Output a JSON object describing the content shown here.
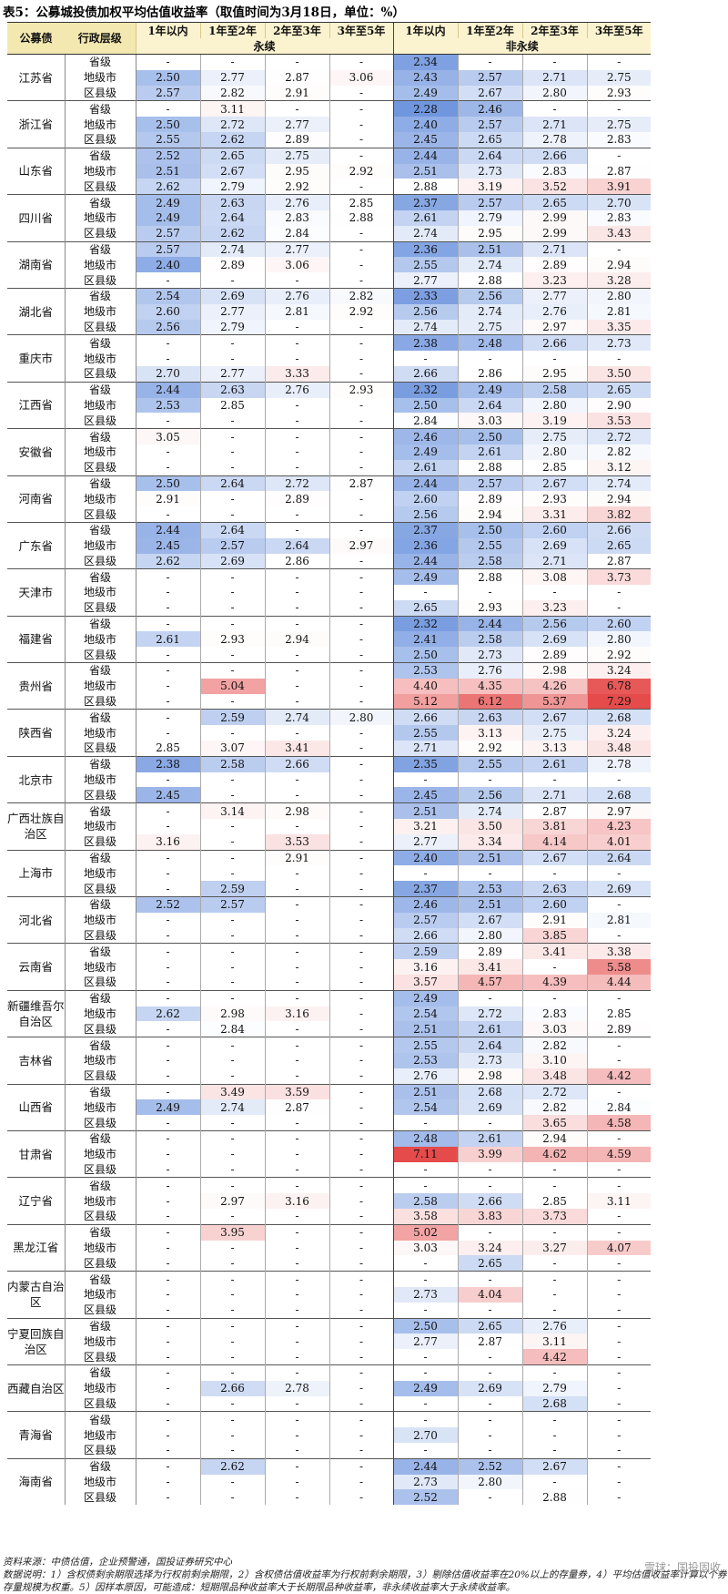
{
  "title": "表5：公募城投债加权平均估值收益率（取值时间为3月18日，单位：%）",
  "header": {
    "issuer": "公募债",
    "level": "行政层级",
    "terms": [
      "1年以内",
      "1年至2年",
      "2年至3年",
      "3年至5年"
    ],
    "perpetual": "永续",
    "non_perpetual": "非永续"
  },
  "levels": [
    "省级",
    "地级市",
    "区县级"
  ],
  "rows": [
    {
      "prov": "江苏省",
      "data": [
        [
          "-",
          "-",
          "-",
          "-",
          "2.34",
          "-",
          "-",
          "-"
        ],
        [
          "2.50",
          "2.77",
          "2.87",
          "3.06",
          "2.43",
          "2.57",
          "2.71",
          "2.75"
        ],
        [
          "2.57",
          "2.82",
          "2.91",
          "-",
          "2.49",
          "2.67",
          "2.80",
          "2.93"
        ]
      ]
    },
    {
      "prov": "浙江省",
      "data": [
        [
          "-",
          "3.11",
          "-",
          "-",
          "2.28",
          "2.46",
          "-",
          "-"
        ],
        [
          "2.50",
          "2.72",
          "2.77",
          "-",
          "2.40",
          "2.57",
          "2.71",
          "2.75"
        ],
        [
          "2.55",
          "2.62",
          "2.89",
          "-",
          "2.45",
          "2.65",
          "2.78",
          "2.83"
        ]
      ]
    },
    {
      "prov": "山东省",
      "data": [
        [
          "2.52",
          "2.65",
          "2.75",
          "-",
          "2.44",
          "2.64",
          "2.66",
          "-"
        ],
        [
          "2.51",
          "2.67",
          "2.95",
          "2.92",
          "2.51",
          "2.73",
          "2.83",
          "2.87"
        ],
        [
          "2.62",
          "2.79",
          "2.92",
          "-",
          "2.88",
          "3.19",
          "3.52",
          "3.91"
        ]
      ]
    },
    {
      "prov": "四川省",
      "data": [
        [
          "2.49",
          "2.63",
          "2.76",
          "2.85",
          "2.37",
          "2.57",
          "2.65",
          "2.70"
        ],
        [
          "2.49",
          "2.64",
          "2.83",
          "2.88",
          "2.61",
          "2.79",
          "2.99",
          "2.83"
        ],
        [
          "2.57",
          "2.62",
          "2.84",
          "-",
          "2.74",
          "2.95",
          "2.99",
          "3.43"
        ]
      ]
    },
    {
      "prov": "湖南省",
      "data": [
        [
          "2.57",
          "2.74",
          "2.77",
          "-",
          "2.36",
          "2.51",
          "2.71",
          "-"
        ],
        [
          "2.40",
          "2.89",
          "3.06",
          "-",
          "2.55",
          "2.74",
          "2.89",
          "2.94"
        ],
        [
          "-",
          "-",
          "-",
          "-",
          "2.77",
          "2.88",
          "3.23",
          "3.28"
        ]
      ]
    },
    {
      "prov": "湖北省",
      "data": [
        [
          "2.54",
          "2.69",
          "2.76",
          "2.82",
          "2.33",
          "2.56",
          "2.77",
          "2.80"
        ],
        [
          "2.60",
          "2.77",
          "2.81",
          "2.92",
          "2.56",
          "2.74",
          "2.76",
          "2.81"
        ],
        [
          "2.56",
          "2.79",
          "-",
          "-",
          "2.74",
          "2.75",
          "2.97",
          "3.35"
        ]
      ]
    },
    {
      "prov": "重庆市",
      "data": [
        [
          "-",
          "-",
          "-",
          "-",
          "2.38",
          "2.48",
          "2.66",
          "2.73"
        ],
        [
          "-",
          "-",
          "-",
          "-",
          "-",
          "-",
          "-",
          "-"
        ],
        [
          "2.70",
          "2.77",
          "3.33",
          "-",
          "2.66",
          "2.86",
          "2.95",
          "3.50"
        ]
      ]
    },
    {
      "prov": "江西省",
      "data": [
        [
          "2.44",
          "2.63",
          "2.76",
          "2.93",
          "2.32",
          "2.49",
          "2.58",
          "2.65"
        ],
        [
          "2.53",
          "2.85",
          "-",
          "-",
          "2.50",
          "2.64",
          "2.80",
          "2.90"
        ],
        [
          "-",
          "-",
          "-",
          "-",
          "2.84",
          "3.03",
          "3.19",
          "3.53"
        ]
      ]
    },
    {
      "prov": "安徽省",
      "data": [
        [
          "3.05",
          "-",
          "-",
          "-",
          "2.46",
          "2.50",
          "2.75",
          "2.72"
        ],
        [
          "-",
          "-",
          "-",
          "-",
          "2.49",
          "2.61",
          "2.80",
          "2.82"
        ],
        [
          "-",
          "-",
          "-",
          "-",
          "2.61",
          "2.88",
          "2.85",
          "3.12"
        ]
      ]
    },
    {
      "prov": "河南省",
      "data": [
        [
          "2.50",
          "2.64",
          "2.72",
          "2.87",
          "2.44",
          "2.57",
          "2.67",
          "2.74"
        ],
        [
          "2.91",
          "-",
          "2.89",
          "-",
          "2.60",
          "2.89",
          "2.93",
          "2.94"
        ],
        [
          "-",
          "-",
          "-",
          "-",
          "2.56",
          "2.94",
          "3.31",
          "3.82"
        ]
      ]
    },
    {
      "prov": "广东省",
      "data": [
        [
          "2.44",
          "2.64",
          "-",
          "-",
          "2.37",
          "2.50",
          "2.60",
          "2.66"
        ],
        [
          "2.45",
          "2.57",
          "2.64",
          "2.97",
          "2.36",
          "2.55",
          "2.69",
          "2.65"
        ],
        [
          "2.62",
          "2.69",
          "2.86",
          "-",
          "2.44",
          "2.58",
          "2.71",
          "2.87"
        ]
      ]
    },
    {
      "prov": "天津市",
      "data": [
        [
          "-",
          "-",
          "-",
          "-",
          "2.49",
          "2.88",
          "3.08",
          "3.73"
        ],
        [
          "-",
          "-",
          "-",
          "-",
          "-",
          "-",
          "-",
          "-"
        ],
        [
          "-",
          "-",
          "-",
          "-",
          "2.65",
          "2.93",
          "3.23",
          "-"
        ]
      ]
    },
    {
      "prov": "福建省",
      "data": [
        [
          "-",
          "-",
          "-",
          "-",
          "2.32",
          "2.44",
          "2.56",
          "2.60"
        ],
        [
          "2.61",
          "2.93",
          "2.94",
          "-",
          "2.41",
          "2.58",
          "2.69",
          "2.80"
        ],
        [
          "-",
          "-",
          "-",
          "-",
          "2.50",
          "2.73",
          "2.89",
          "2.92"
        ]
      ]
    },
    {
      "prov": "贵州省",
      "data": [
        [
          "-",
          "-",
          "-",
          "-",
          "2.53",
          "2.76",
          "2.98",
          "3.24"
        ],
        [
          "-",
          "5.04",
          "-",
          "-",
          "4.40",
          "4.35",
          "4.26",
          "6.78"
        ],
        [
          "-",
          "-",
          "-",
          "-",
          "5.12",
          "6.12",
          "5.37",
          "7.29"
        ]
      ]
    },
    {
      "prov": "陕西省",
      "data": [
        [
          "-",
          "2.59",
          "2.74",
          "2.80",
          "2.66",
          "2.63",
          "2.67",
          "2.68"
        ],
        [
          "-",
          "-",
          "-",
          "-",
          "2.55",
          "3.13",
          "2.75",
          "3.24"
        ],
        [
          "2.85",
          "3.07",
          "3.41",
          "-",
          "2.71",
          "2.92",
          "3.13",
          "3.48"
        ]
      ]
    },
    {
      "prov": "北京市",
      "data": [
        [
          "2.38",
          "2.58",
          "2.66",
          "-",
          "2.35",
          "2.55",
          "2.61",
          "2.78"
        ],
        [
          "-",
          "-",
          "-",
          "-",
          "-",
          "-",
          "-",
          "-"
        ],
        [
          "2.45",
          "-",
          "-",
          "-",
          "2.45",
          "2.56",
          "2.71",
          "2.68"
        ]
      ]
    },
    {
      "prov": "广西壮族自治区",
      "data": [
        [
          "-",
          "3.14",
          "2.98",
          "-",
          "2.51",
          "2.74",
          "2.87",
          "2.97"
        ],
        [
          "-",
          "-",
          "-",
          "-",
          "3.21",
          "3.50",
          "3.81",
          "4.23"
        ],
        [
          "3.16",
          "-",
          "3.53",
          "-",
          "2.77",
          "3.34",
          "4.14",
          "4.01"
        ]
      ]
    },
    {
      "prov": "上海市",
      "data": [
        [
          "-",
          "-",
          "2.91",
          "-",
          "2.40",
          "2.51",
          "2.67",
          "2.64"
        ],
        [
          "-",
          "-",
          "-",
          "-",
          "-",
          "-",
          "-",
          "-"
        ],
        [
          "-",
          "2.59",
          "-",
          "-",
          "2.37",
          "2.53",
          "2.63",
          "2.69"
        ]
      ]
    },
    {
      "prov": "河北省",
      "data": [
        [
          "2.52",
          "2.57",
          "-",
          "-",
          "2.46",
          "2.51",
          "2.60",
          "-"
        ],
        [
          "-",
          "-",
          "-",
          "-",
          "2.57",
          "2.67",
          "2.91",
          "2.81"
        ],
        [
          "-",
          "-",
          "-",
          "-",
          "2.66",
          "2.80",
          "3.85",
          "-"
        ]
      ]
    },
    {
      "prov": "云南省",
      "data": [
        [
          "-",
          "-",
          "-",
          "-",
          "2.59",
          "2.89",
          "3.41",
          "3.38"
        ],
        [
          "-",
          "-",
          "-",
          "-",
          "3.16",
          "3.41",
          "-",
          "5.58"
        ],
        [
          "-",
          "-",
          "-",
          "-",
          "3.57",
          "4.57",
          "4.39",
          "4.44"
        ]
      ]
    },
    {
      "prov": "新疆维吾尔自治区",
      "data": [
        [
          "-",
          "-",
          "-",
          "-",
          "2.49",
          "-",
          "-",
          "-"
        ],
        [
          "2.62",
          "2.98",
          "3.16",
          "-",
          "2.54",
          "2.72",
          "2.83",
          "2.85"
        ],
        [
          "-",
          "2.84",
          "-",
          "-",
          "2.51",
          "2.61",
          "3.03",
          "2.89"
        ]
      ]
    },
    {
      "prov": "吉林省",
      "data": [
        [
          "-",
          "-",
          "-",
          "-",
          "2.55",
          "2.64",
          "2.82",
          "-"
        ],
        [
          "-",
          "-",
          "-",
          "-",
          "2.53",
          "2.73",
          "3.10",
          "-"
        ],
        [
          "-",
          "-",
          "-",
          "-",
          "2.76",
          "2.98",
          "3.48",
          "4.42"
        ]
      ]
    },
    {
      "prov": "山西省",
      "data": [
        [
          "-",
          "3.49",
          "3.59",
          "-",
          "2.51",
          "2.68",
          "2.72",
          "-"
        ],
        [
          "2.49",
          "2.74",
          "2.87",
          "-",
          "2.54",
          "2.69",
          "2.82",
          "2.84"
        ],
        [
          "-",
          "-",
          "-",
          "-",
          "-",
          "-",
          "3.65",
          "4.58"
        ]
      ]
    },
    {
      "prov": "甘肃省",
      "data": [
        [
          "-",
          "-",
          "-",
          "-",
          "2.48",
          "2.61",
          "2.94",
          "-"
        ],
        [
          "-",
          "-",
          "-",
          "-",
          "7.11",
          "3.99",
          "4.62",
          "4.59"
        ],
        [
          "-",
          "-",
          "-",
          "-",
          "-",
          "-",
          "-",
          "-"
        ]
      ]
    },
    {
      "prov": "辽宁省",
      "data": [
        [
          "-",
          "-",
          "-",
          "-",
          "-",
          "-",
          "-",
          "-"
        ],
        [
          "-",
          "2.97",
          "3.16",
          "-",
          "2.58",
          "2.66",
          "2.85",
          "3.11"
        ],
        [
          "-",
          "-",
          "-",
          "-",
          "3.58",
          "3.83",
          "3.73",
          "-"
        ]
      ]
    },
    {
      "prov": "黑龙江省",
      "data": [
        [
          "-",
          "3.95",
          "-",
          "-",
          "5.02",
          "-",
          "-",
          "-"
        ],
        [
          "-",
          "-",
          "-",
          "-",
          "3.03",
          "3.24",
          "3.27",
          "4.07"
        ],
        [
          "-",
          "-",
          "-",
          "-",
          "-",
          "2.65",
          "-",
          "-"
        ]
      ]
    },
    {
      "prov": "内蒙古自治区",
      "data": [
        [
          "-",
          "-",
          "-",
          "-",
          "-",
          "-",
          "-",
          "-"
        ],
        [
          "-",
          "-",
          "-",
          "-",
          "2.73",
          "4.04",
          "-",
          "-"
        ],
        [
          "-",
          "-",
          "-",
          "-",
          "-",
          "-",
          "-",
          "-"
        ]
      ]
    },
    {
      "prov": "宁夏回族自治区",
      "data": [
        [
          "-",
          "-",
          "-",
          "-",
          "2.50",
          "2.65",
          "2.76",
          "-"
        ],
        [
          "-",
          "-",
          "-",
          "-",
          "2.77",
          "2.87",
          "3.11",
          "-"
        ],
        [
          "-",
          "-",
          "-",
          "-",
          "-",
          "-",
          "4.42",
          "-"
        ]
      ]
    },
    {
      "prov": "西藏自治区",
      "data": [
        [
          "-",
          "-",
          "-",
          "-",
          "-",
          "-",
          "-",
          "-"
        ],
        [
          "-",
          "2.66",
          "2.78",
          "-",
          "2.49",
          "2.69",
          "2.79",
          "-"
        ],
        [
          "-",
          "-",
          "-",
          "-",
          "-",
          "-",
          "2.68",
          "-"
        ]
      ]
    },
    {
      "prov": "青海省",
      "data": [
        [
          "-",
          "-",
          "-",
          "-",
          "-",
          "-",
          "-",
          "-"
        ],
        [
          "-",
          "-",
          "-",
          "-",
          "2.70",
          "-",
          "-",
          "-"
        ],
        [
          "-",
          "-",
          "-",
          "-",
          "-",
          "-",
          "-",
          "-"
        ]
      ]
    },
    {
      "prov": "海南省",
      "data": [
        [
          "-",
          "2.62",
          "-",
          "-",
          "2.44",
          "2.52",
          "2.67",
          "-"
        ],
        [
          "-",
          "-",
          "-",
          "-",
          "2.73",
          "2.80",
          "-",
          "-"
        ],
        [
          "-",
          "-",
          "-",
          "-",
          "2.52",
          "-",
          "2.88",
          "-"
        ]
      ]
    }
  ],
  "notes": {
    "source": "资料来源：中债估值，企业预警通，国投证券研究中心",
    "explain": "数据说明：1）含权债剩余期限选择为行权前剩余期限，2）含权债估值收益率为行权前剩余期限，3）剔除估值收益率在20%以上的存量券，4）平均估值收益率计算以个券存量规模为权重。5）因样本原因，可能造成：短期限品种收益率大于长期限品种收益率，非永续收益率大于永续收益率。"
  },
  "watermark": "雪球：国投固收"
}
